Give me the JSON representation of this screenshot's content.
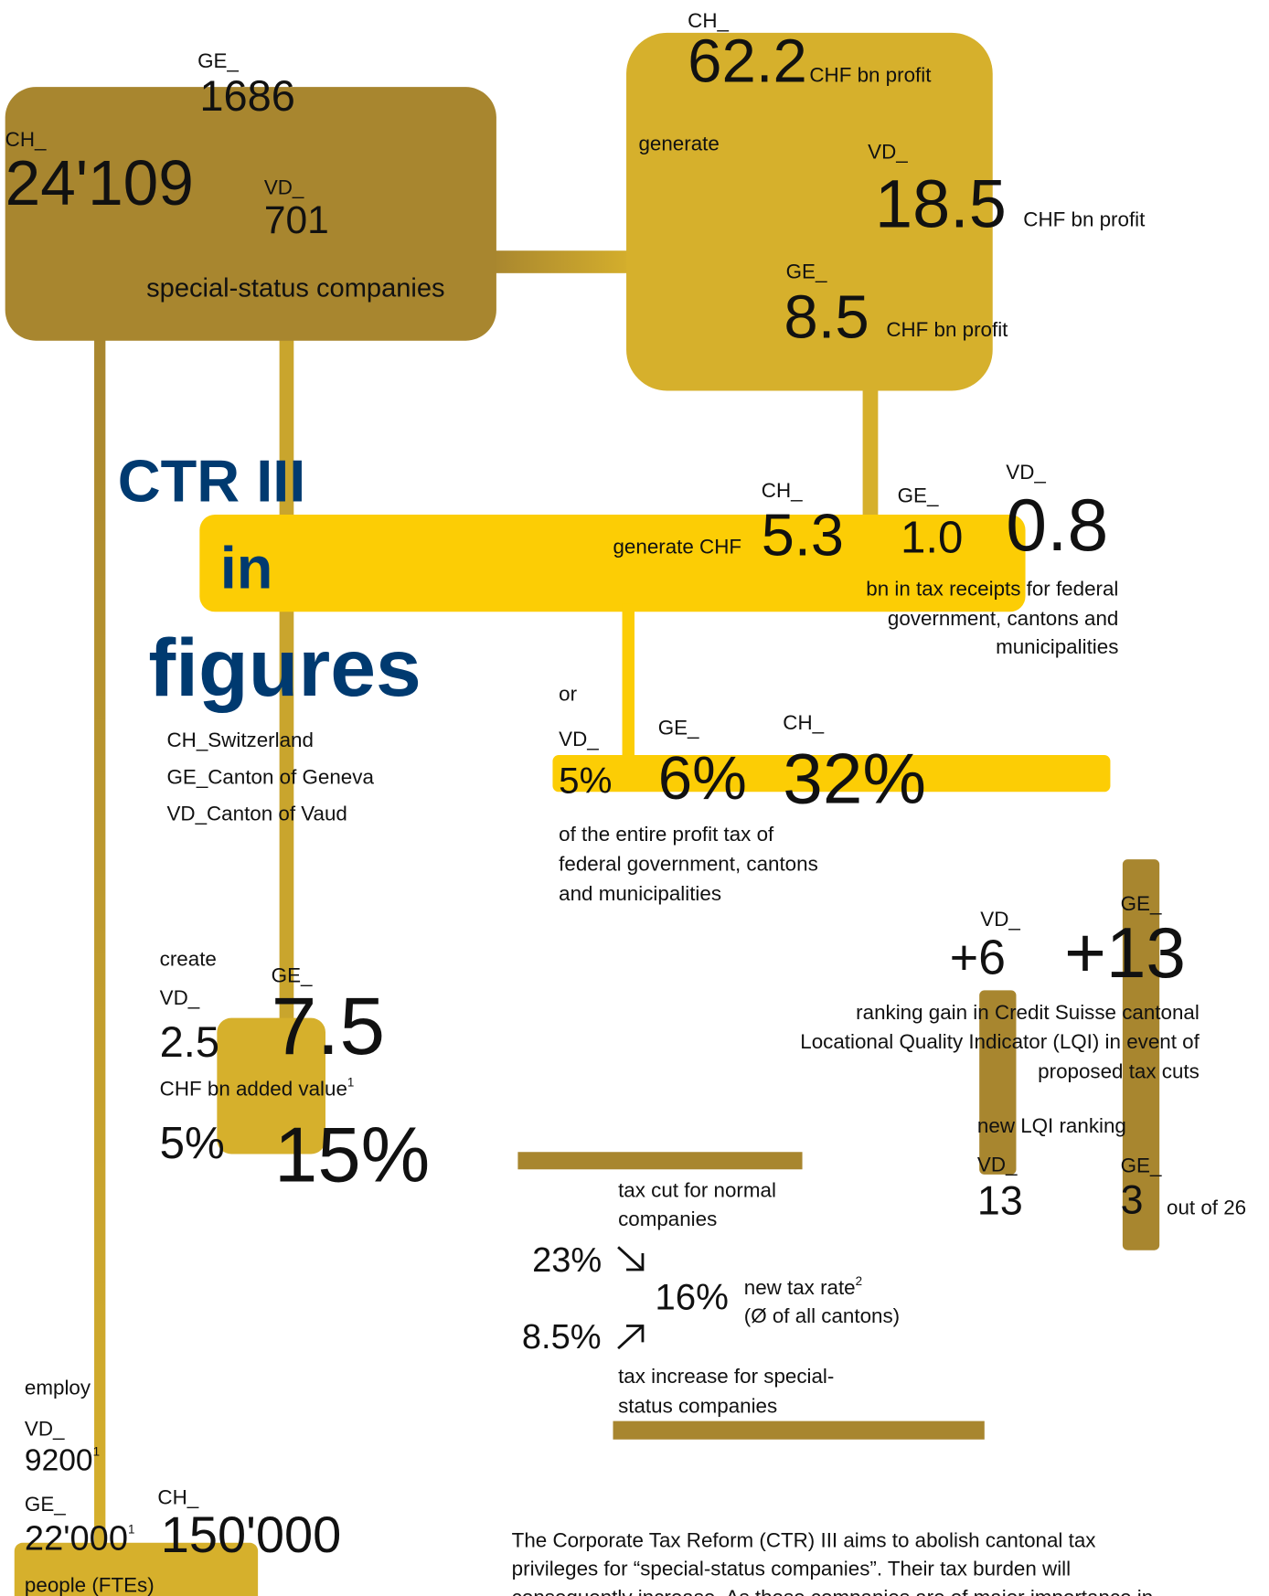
{
  "companies": {
    "ge_label": "GE_",
    "ge_value": "1686",
    "ch_label": "CH_",
    "ch_value": "24'109",
    "vd_label": "VD_",
    "vd_value": "701",
    "caption": "special-status companies"
  },
  "profit": {
    "ch_label": "CH_",
    "ch_value": "62.2",
    "ch_unit": "CHF bn profit",
    "verb": "generate",
    "vd_label": "VD_",
    "vd_value": "18.5",
    "vd_unit": "CHF bn profit",
    "ge_label": "GE_",
    "ge_value": "8.5",
    "ge_unit": "CHF bn profit"
  },
  "title": {
    "line1": "CTR III",
    "line2": "in",
    "line3": "figures"
  },
  "legend": [
    "CH_Switzerland",
    "GE_Canton of Geneva",
    "VD_Canton of Vaud"
  ],
  "tax_receipts": {
    "prefix": "generate CHF",
    "ch_label": "CH_",
    "ch_value": "5.3",
    "ge_label": "GE_",
    "ge_value": "1.0",
    "vd_label": "VD_",
    "vd_value": "0.8",
    "caption": [
      "bn in tax receipts for federal",
      "government, cantons and",
      "municipalities"
    ]
  },
  "share": {
    "prefix": "or",
    "vd_label": "VD_",
    "vd_value": "5%",
    "ge_label": "GE_",
    "ge_value": "6%",
    "ch_label": "CH_",
    "ch_value": "32%",
    "caption": [
      "of the entire profit tax of",
      "federal government, cantons",
      "and municipalities"
    ]
  },
  "added_value": {
    "verb": "create",
    "vd_label": "VD_",
    "vd_value": "2.5",
    "ge_label": "GE_",
    "ge_value": "7.5",
    "caption": "CHF bn added value",
    "footnote": "1",
    "vd_share": "5%",
    "ge_share": "15%"
  },
  "ranking": {
    "vd_label": "VD_",
    "vd_gain": "+6",
    "ge_label": "GE_",
    "ge_gain": "+13",
    "caption": [
      "ranking gain in Credit Suisse cantonal",
      "Locational Quality Indicator (LQI) in event of",
      "proposed tax cuts"
    ],
    "new_label": "new LQI ranking",
    "vd_label2": "VD_",
    "vd_rank": "13",
    "ge_label2": "GE_",
    "ge_rank": "3",
    "out_of": "out of 26"
  },
  "tax_rate": {
    "cut_label": [
      "tax cut for normal",
      "companies"
    ],
    "old_normal": "23%",
    "new_rate": "16%",
    "new_label": "new tax rate",
    "new_footnote": "2",
    "new_note": "(Ø of all cantons)",
    "old_special": "8.5%",
    "increase_label": [
      "tax increase for special-",
      "status companies"
    ]
  },
  "employment": {
    "verb": "employ",
    "vd_label": "VD_",
    "vd_value": "9200",
    "vd_footnote": "1",
    "ge_label": "GE_",
    "ge_value": "22'000",
    "ge_footnote": "1",
    "ch_label": "CH_",
    "ch_value": "150'000",
    "caption": "people (FTEs)"
  },
  "intro": [
    "The Corporate Tax Reform (CTR) III aims to abolish cantonal tax",
    "privileges for “special-status companies”. Their tax burden will",
    "consequently increase. As these companies are of major importance in"
  ]
}
